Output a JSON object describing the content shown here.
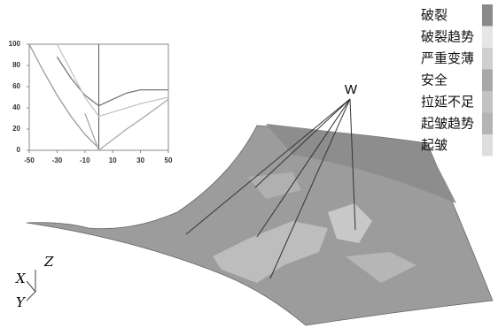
{
  "chart_data": {
    "type": "line",
    "x": [
      -50,
      -40,
      -30,
      -20,
      -10,
      0,
      10,
      20,
      30,
      50
    ],
    "series": [
      {
        "color": "#9a9a9a",
        "values": [
          100,
          75,
          52,
          32,
          15,
          2,
          null,
          null,
          null,
          null
        ]
      },
      {
        "color": "#777777",
        "values": [
          null,
          null,
          88,
          68,
          52,
          42,
          48,
          54,
          57,
          57
        ]
      },
      {
        "color": "#c4c4c4",
        "values": [
          null,
          null,
          100,
          75,
          50,
          32,
          36,
          40,
          44,
          50
        ]
      },
      {
        "color": "#a8a8a8",
        "values": [
          null,
          null,
          null,
          null,
          35,
          0,
          10,
          20,
          29,
          48
        ]
      }
    ],
    "xlim": [
      -50,
      50
    ],
    "ylim": [
      0,
      100
    ],
    "xticks": [
      -50,
      -30,
      -10,
      10,
      30,
      50
    ],
    "yticks": [
      0,
      20,
      40,
      60,
      80,
      100
    ]
  },
  "legend": [
    {
      "label": "破裂",
      "color": "#8a8a8a"
    },
    {
      "label": "破裂趋势",
      "color": "#e6e6e6"
    },
    {
      "label": "严重变薄",
      "color": "#cfcfcf"
    },
    {
      "label": "安全",
      "color": "#a9a9a9"
    },
    {
      "label": "拉延不足",
      "color": "#c3c3c3"
    },
    {
      "label": "起皱趋势",
      "color": "#b4b4b4"
    },
    {
      "label": "起皱",
      "color": "#dedede"
    }
  ],
  "callout": "W",
  "axes": {
    "z": "Z",
    "x": "X",
    "y": "Y"
  }
}
